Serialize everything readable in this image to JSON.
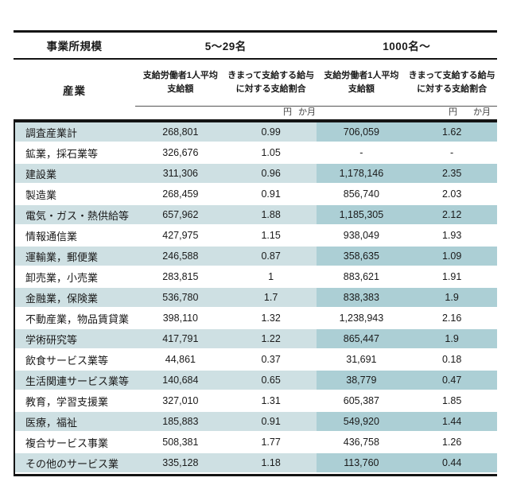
{
  "table": {
    "size_header": "事業所規模",
    "industry_header": "産業",
    "groups": [
      {
        "label": "5〜29名"
      },
      {
        "label": "1000名〜"
      }
    ],
    "col_headers": {
      "avg_line1": "支給労働者1人平均",
      "avg_line2": "支給額",
      "ratio_line1": "きまって支給する給与",
      "ratio_line2": "に対する支給割合"
    },
    "units": {
      "yen": "円",
      "months": "か月"
    },
    "colors": {
      "light_band": "#cee0e3",
      "dark_band": "#accfd5",
      "rule": "#141414"
    },
    "rows": [
      {
        "industry": "調査産業計",
        "small_avg": "268,801",
        "small_ratio": "0.99",
        "large_avg": "706,059",
        "large_ratio": "1.62"
      },
      {
        "industry": "鉱業，採石業等",
        "small_avg": "326,676",
        "small_ratio": "1.05",
        "large_avg": "-",
        "large_ratio": "-"
      },
      {
        "industry": "建設業",
        "small_avg": "311,306",
        "small_ratio": "0.96",
        "large_avg": "1,178,146",
        "large_ratio": "2.35"
      },
      {
        "industry": "製造業",
        "small_avg": "268,459",
        "small_ratio": "0.91",
        "large_avg": "856,740",
        "large_ratio": "2.03"
      },
      {
        "industry": "電気・ガス・熱供給等",
        "small_avg": "657,962",
        "small_ratio": "1.88",
        "large_avg": "1,185,305",
        "large_ratio": "2.12"
      },
      {
        "industry": "情報通信業",
        "small_avg": "427,975",
        "small_ratio": "1.15",
        "large_avg": "938,049",
        "large_ratio": "1.93"
      },
      {
        "industry": "運輸業，郵便業",
        "small_avg": "246,588",
        "small_ratio": "0.87",
        "large_avg": "358,635",
        "large_ratio": "1.09"
      },
      {
        "industry": "卸売業，小売業",
        "small_avg": "283,815",
        "small_ratio": "1",
        "large_avg": "883,621",
        "large_ratio": "1.91"
      },
      {
        "industry": "金融業，保険業",
        "small_avg": "536,780",
        "small_ratio": "1.7",
        "large_avg": "838,383",
        "large_ratio": "1.9"
      },
      {
        "industry": "不動産業，物品賃貸業",
        "small_avg": "398,110",
        "small_ratio": "1.32",
        "large_avg": "1,238,943",
        "large_ratio": "2.16"
      },
      {
        "industry": "学術研究等",
        "small_avg": "417,791",
        "small_ratio": "1.22",
        "large_avg": "865,447",
        "large_ratio": "1.9"
      },
      {
        "industry": "飲食サービス業等",
        "small_avg": "44,861",
        "small_ratio": "0.37",
        "large_avg": "31,691",
        "large_ratio": "0.18"
      },
      {
        "industry": "生活関連サービス業等",
        "small_avg": "140,684",
        "small_ratio": "0.65",
        "large_avg": "38,779",
        "large_ratio": "0.47"
      },
      {
        "industry": "教育，学習支援業",
        "small_avg": "327,010",
        "small_ratio": "1.31",
        "large_avg": "605,387",
        "large_ratio": "1.85"
      },
      {
        "industry": "医療，福祉",
        "small_avg": "185,883",
        "small_ratio": "0.91",
        "large_avg": "549,920",
        "large_ratio": "1.44"
      },
      {
        "industry": "複合サービス事業",
        "small_avg": "508,381",
        "small_ratio": "1.77",
        "large_avg": "436,758",
        "large_ratio": "1.26"
      },
      {
        "industry": "その他のサービス業",
        "small_avg": "335,128",
        "small_ratio": "1.18",
        "large_avg": "113,760",
        "large_ratio": "0.44"
      }
    ]
  }
}
